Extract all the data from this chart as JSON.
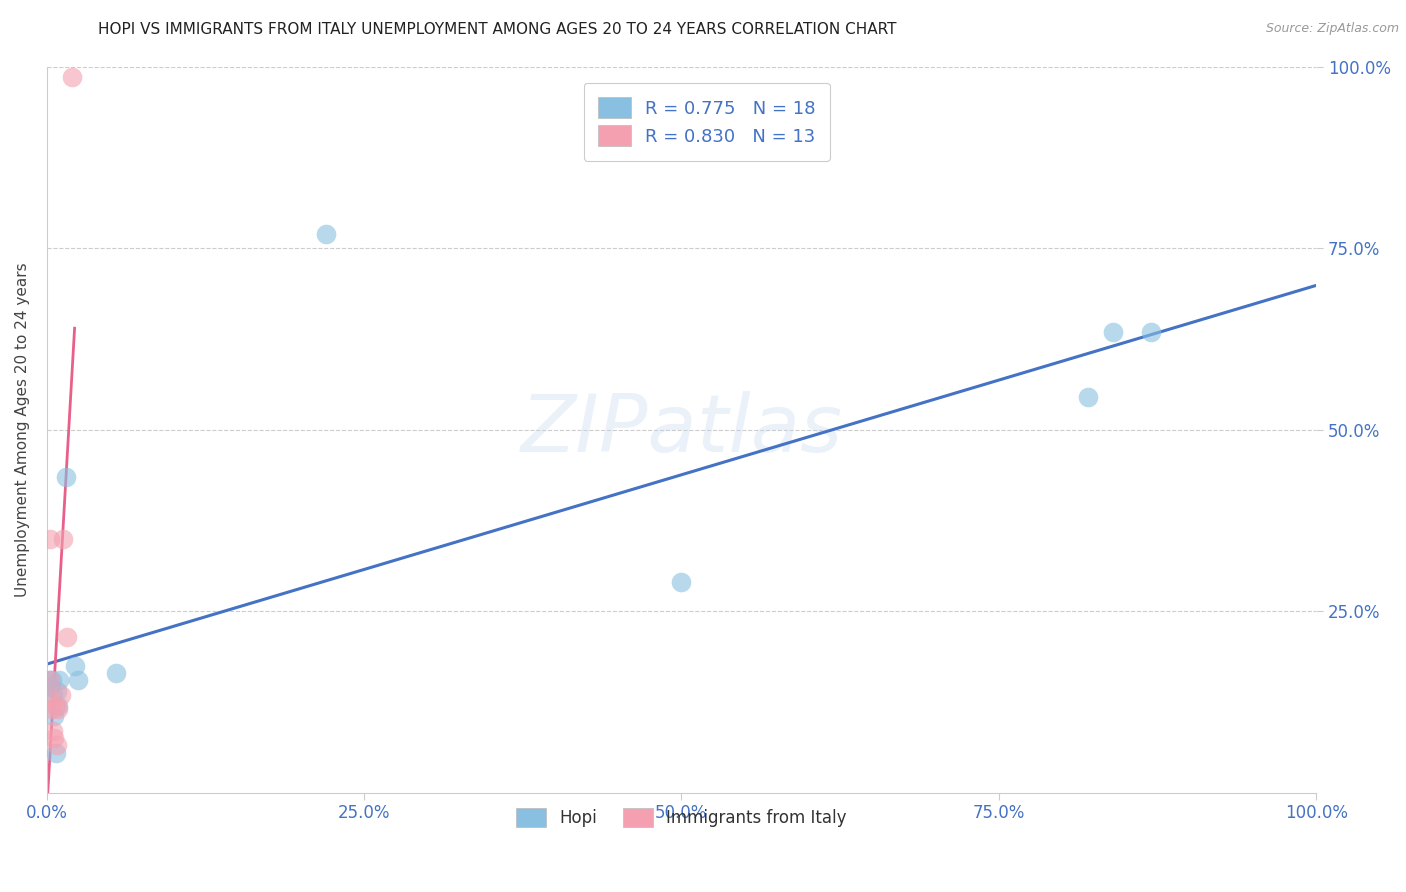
{
  "title": "HOPI VS IMMIGRANTS FROM ITALY UNEMPLOYMENT AMONG AGES 20 TO 24 YEARS CORRELATION CHART",
  "source": "Source: ZipAtlas.com",
  "ylabel": "Unemployment Among Ages 20 to 24 years",
  "xlim": [
    0.0,
    1.0
  ],
  "ylim": [
    0.0,
    1.0
  ],
  "xticks": [
    0.0,
    0.25,
    0.5,
    0.75,
    1.0
  ],
  "yticks": [
    0.25,
    0.5,
    0.75,
    1.0
  ],
  "xtick_labels": [
    "0.0%",
    "25.0%",
    "50.0%",
    "75.0%",
    "100.0%"
  ],
  "ytick_labels": [
    "25.0%",
    "50.0%",
    "75.0%",
    "100.0%"
  ],
  "background_color": "#ffffff",
  "hopi_color": "#89bfe0",
  "italy_color": "#f4a0b0",
  "hopi_line_color": "#4472c4",
  "italy_line_color": "#e8608a",
  "hopi_R": 0.775,
  "hopi_N": 18,
  "italy_R": 0.83,
  "italy_N": 13,
  "hopi_x": [
    0.002,
    0.003,
    0.004,
    0.005,
    0.006,
    0.007,
    0.008,
    0.009,
    0.01,
    0.015,
    0.022,
    0.025,
    0.055,
    0.22,
    0.5,
    0.82,
    0.84,
    0.87
  ],
  "hopi_y": [
    0.155,
    0.145,
    0.155,
    0.135,
    0.105,
    0.055,
    0.14,
    0.12,
    0.155,
    0.435,
    0.175,
    0.155,
    0.165,
    0.77,
    0.29,
    0.545,
    0.635,
    0.635
  ],
  "italy_x": [
    0.002,
    0.003,
    0.003,
    0.004,
    0.005,
    0.006,
    0.007,
    0.008,
    0.009,
    0.011,
    0.013,
    0.016,
    0.02
  ],
  "italy_y": [
    0.13,
    0.155,
    0.35,
    0.115,
    0.085,
    0.075,
    0.12,
    0.065,
    0.115,
    0.135,
    0.35,
    0.215,
    0.985
  ]
}
